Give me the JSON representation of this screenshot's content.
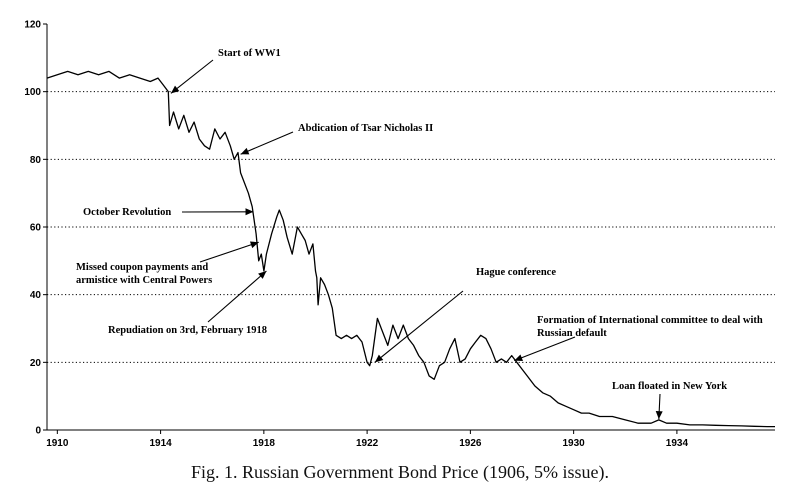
{
  "caption": "Fig. 1.  Russian Government Bond Price (1906, 5% issue).",
  "chart_data": {
    "type": "line",
    "title": "",
    "xlabel": "",
    "ylabel": "",
    "xlim": [
      1909.6,
      1937.8
    ],
    "ylim": [
      0,
      120
    ],
    "grid": "horizontal-dotted",
    "legend": "none",
    "x_ticks": [
      1910,
      1914,
      1918,
      1922,
      1926,
      1930,
      1934
    ],
    "y_ticks": [
      0,
      20,
      40,
      60,
      80,
      100,
      120
    ],
    "series": [
      {
        "name": "",
        "color": "#000000",
        "x": [
          1909.6,
          1910.0,
          1910.4,
          1910.8,
          1911.2,
          1911.6,
          1912.0,
          1912.4,
          1912.8,
          1913.2,
          1913.6,
          1913.9,
          1914.1,
          1914.3,
          1914.35,
          1914.5,
          1914.7,
          1914.9,
          1915.1,
          1915.3,
          1915.5,
          1915.7,
          1915.9,
          1916.1,
          1916.3,
          1916.5,
          1916.7,
          1916.85,
          1917.0,
          1917.1,
          1917.2,
          1917.4,
          1917.55,
          1917.7,
          1917.8,
          1917.9,
          1918.0,
          1918.1,
          1918.3,
          1918.5,
          1918.6,
          1918.75,
          1918.9,
          1919.1,
          1919.3,
          1919.45,
          1919.6,
          1919.75,
          1919.9,
          1920.0,
          1920.05,
          1920.1,
          1920.2,
          1920.35,
          1920.5,
          1920.65,
          1920.8,
          1921.0,
          1921.2,
          1921.4,
          1921.6,
          1921.8,
          1922.0,
          1922.1,
          1922.2,
          1922.4,
          1922.6,
          1922.8,
          1923.0,
          1923.2,
          1923.4,
          1923.6,
          1923.8,
          1924.0,
          1924.2,
          1924.4,
          1924.6,
          1924.8,
          1925.0,
          1925.2,
          1925.4,
          1925.6,
          1925.8,
          1926.0,
          1926.2,
          1926.4,
          1926.6,
          1926.8,
          1927.0,
          1927.2,
          1927.4,
          1927.6,
          1927.8,
          1928.0,
          1928.2,
          1928.5,
          1928.8,
          1929.1,
          1929.4,
          1929.7,
          1930.0,
          1930.3,
          1930.6,
          1931.0,
          1931.5,
          1932.0,
          1932.5,
          1932.8,
          1933.0,
          1933.3,
          1933.6,
          1934.0,
          1934.5,
          1935.0,
          1935.5,
          1936.0,
          1936.5,
          1937.0,
          1937.5,
          1937.8
        ],
        "y": [
          104,
          105,
          106,
          105,
          106,
          105,
          106,
          104,
          105,
          104,
          103,
          104,
          102,
          100,
          90,
          94,
          89,
          93,
          88,
          91,
          86,
          84,
          83,
          89,
          86,
          88,
          84,
          80,
          82,
          76,
          74,
          70,
          66,
          58,
          50,
          52,
          47,
          52,
          58,
          63,
          65,
          62,
          57,
          52,
          60,
          58,
          56,
          52,
          55,
          47,
          45,
          37,
          45,
          43,
          40,
          36,
          28,
          27,
          28,
          27,
          28,
          26,
          20,
          19,
          22,
          33,
          29,
          25,
          31,
          27,
          31,
          27,
          25,
          22,
          20,
          16,
          15,
          19,
          20,
          24,
          27,
          20,
          21,
          24,
          26,
          28,
          27,
          24,
          20,
          21,
          20,
          22,
          20,
          18,
          16,
          13,
          11,
          10,
          8,
          7,
          6,
          5,
          5,
          4,
          4,
          3,
          2,
          2,
          2,
          3,
          2,
          2,
          1.5,
          1.5,
          1.4,
          1.3,
          1.2,
          1.1,
          1,
          1
        ]
      }
    ],
    "annotations": [
      {
        "lines": [
          "Start of WW1"
        ],
        "x": 1914.4,
        "y": 99.5
      },
      {
        "lines": [
          "Abdication of Tsar Nicholas II"
        ],
        "x": 1917.1,
        "y": 81.5
      },
      {
        "lines": [
          "October Revolution"
        ],
        "x": 1917.6,
        "y": 64.5
      },
      {
        "lines": [
          "Missed coupon payments and",
          "armistice with Central Powers"
        ],
        "x": 1917.8,
        "y": 55.5
      },
      {
        "lines": [
          "Repudiation on 3rd, February 1918"
        ],
        "x": 1918.1,
        "y": 47
      },
      {
        "lines": [
          "Hague conference"
        ],
        "x": 1922.3,
        "y": 20
      },
      {
        "lines": [
          "Formation of International committee to deal with",
          "Russian default"
        ],
        "x": 1927.7,
        "y": 20.5
      },
      {
        "lines": [
          "Loan floated in New York"
        ],
        "x": 1933.3,
        "y": 3.2
      }
    ]
  }
}
